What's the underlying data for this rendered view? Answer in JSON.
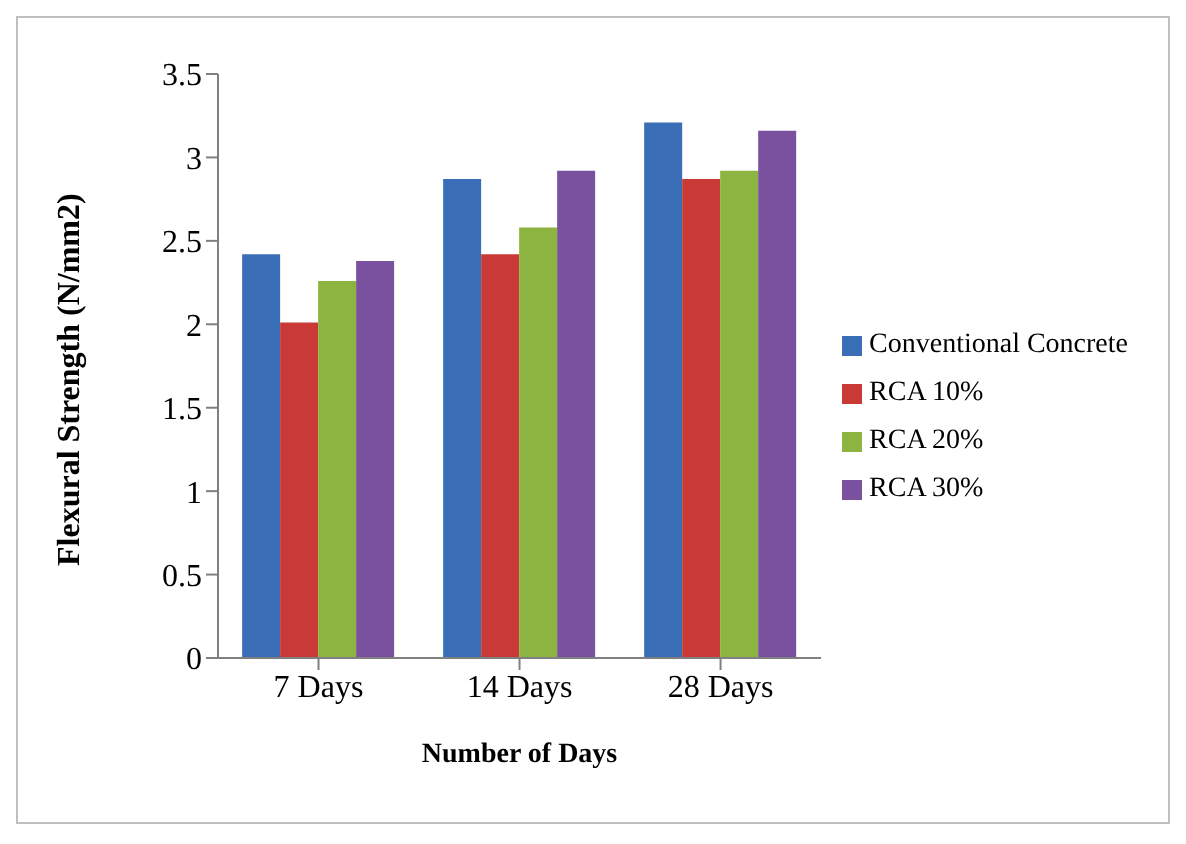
{
  "chart_data": {
    "type": "bar",
    "xlabel": "Number of Days",
    "ylabel": "Flexural Strength (N/mm2)",
    "categories": [
      "7 Days",
      "14 Days",
      "28 Days"
    ],
    "series": [
      {
        "name": "Conventional Concrete",
        "color": "#3a6fb8",
        "values": [
          2.42,
          2.87,
          3.21
        ]
      },
      {
        "name": "RCA 10%",
        "color": "#c93a36",
        "values": [
          2.01,
          2.42,
          2.87
        ]
      },
      {
        "name": "RCA 20%",
        "color": "#8db440",
        "values": [
          2.26,
          2.58,
          2.92
        ]
      },
      {
        "name": "RCA 30%",
        "color": "#7a519e",
        "values": [
          2.38,
          2.92,
          3.16
        ]
      }
    ],
    "ylim": [
      0,
      3.5
    ],
    "yticks": [
      0,
      0.5,
      1,
      1.5,
      2,
      2.5,
      3,
      3.5
    ],
    "grid": false,
    "legend": "right"
  }
}
